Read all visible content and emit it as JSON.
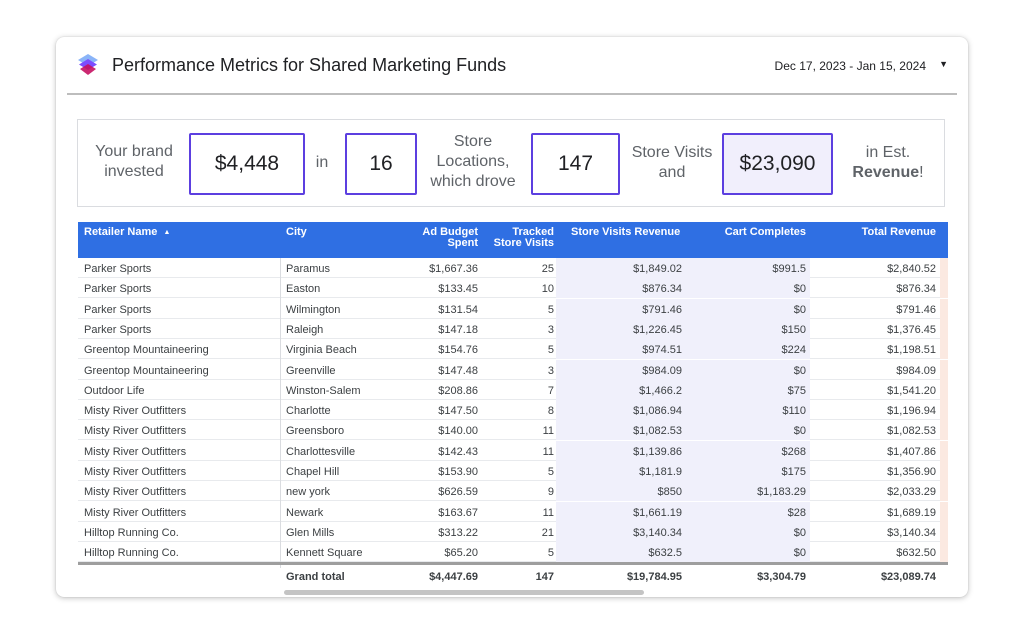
{
  "header": {
    "title": "Performance Metrics for Shared Marketing Funds",
    "date_range": "Dec 17, 2023 - Jan 15, 2024",
    "date_caret": "▼"
  },
  "kpi": {
    "t1": "Your brand invested",
    "v1": "$4,448",
    "t2": "in",
    "v2": "16",
    "t3": "Store Locations, which drove",
    "v3": "147",
    "t4": "Store Visits and",
    "v4": "$23,090",
    "t5a": "in Est.",
    "t5b": "Revenue",
    "t5c": "!"
  },
  "table": {
    "columns": {
      "retailer": "Retailer Name",
      "sort_icon": "▲",
      "city": "City",
      "budget_a": "Ad Budget",
      "budget_b": "Spent",
      "visits_a": "Tracked",
      "visits_b": "Store Visits",
      "svr": "Store Visits Revenue",
      "cart": "Cart Completes",
      "total": "Total Revenue"
    },
    "rows": [
      {
        "retailer": "Parker Sports",
        "city": "Paramus",
        "budget": "$1,667.36",
        "visits": "25",
        "svr": "$1,849.02",
        "cart": "$991.5",
        "total": "$2,840.52"
      },
      {
        "retailer": "Parker Sports",
        "city": "Easton",
        "budget": "$133.45",
        "visits": "10",
        "svr": "$876.34",
        "cart": "$0",
        "total": "$876.34"
      },
      {
        "retailer": "Parker Sports",
        "city": "Wilmington",
        "budget": "$131.54",
        "visits": "5",
        "svr": "$791.46",
        "cart": "$0",
        "total": "$791.46"
      },
      {
        "retailer": "Parker Sports",
        "city": "Raleigh",
        "budget": "$147.18",
        "visits": "3",
        "svr": "$1,226.45",
        "cart": "$150",
        "total": "$1,376.45"
      },
      {
        "retailer": "Greentop Mountaineering",
        "city": "Virginia Beach",
        "budget": "$154.76",
        "visits": "5",
        "svr": "$974.51",
        "cart": "$224",
        "total": "$1,198.51"
      },
      {
        "retailer": "Greentop Mountaineering",
        "city": "Greenville",
        "budget": "$147.48",
        "visits": "3",
        "svr": "$984.09",
        "cart": "$0",
        "total": "$984.09"
      },
      {
        "retailer": "Outdoor Life",
        "city": "Winston-Salem",
        "budget": "$208.86",
        "visits": "7",
        "svr": "$1,466.2",
        "cart": "$75",
        "total": "$1,541.20"
      },
      {
        "retailer": "Misty River Outfitters",
        "city": "Charlotte",
        "budget": "$147.50",
        "visits": "8",
        "svr": "$1,086.94",
        "cart": "$110",
        "total": "$1,196.94"
      },
      {
        "retailer": "Misty River Outfitters",
        "city": "Greensboro",
        "budget": "$140.00",
        "visits": "11",
        "svr": "$1,082.53",
        "cart": "$0",
        "total": "$1,082.53"
      },
      {
        "retailer": "Misty River Outfitters",
        "city": "Charlottesville",
        "budget": "$142.43",
        "visits": "11",
        "svr": "$1,139.86",
        "cart": "$268",
        "total": "$1,407.86"
      },
      {
        "retailer": "Misty River Outfitters",
        "city": "Chapel Hill",
        "budget": "$153.90",
        "visits": "5",
        "svr": "$1,181.9",
        "cart": "$175",
        "total": "$1,356.90"
      },
      {
        "retailer": "Misty River Outfitters",
        "city": "new york",
        "budget": "$626.59",
        "visits": "9",
        "svr": "$850",
        "cart": "$1,183.29",
        "total": "$2,033.29"
      },
      {
        "retailer": "Misty River Outfitters",
        "city": "Newark",
        "budget": "$163.67",
        "visits": "11",
        "svr": "$1,661.19",
        "cart": "$28",
        "total": "$1,689.19"
      },
      {
        "retailer": "Hilltop Running Co.",
        "city": "Glen Mills",
        "budget": "$313.22",
        "visits": "21",
        "svr": "$3,140.34",
        "cart": "$0",
        "total": "$3,140.34"
      },
      {
        "retailer": "Hilltop Running Co.",
        "city": "Kennett Square",
        "budget": "$65.20",
        "visits": "5",
        "svr": "$632.5",
        "cart": "$0",
        "total": "$632.50"
      }
    ],
    "totals": {
      "label": "Grand total",
      "budget": "$4,447.69",
      "visits": "147",
      "svr": "$19,784.95",
      "cart": "$3,304.79",
      "total": "$23,089.74"
    }
  },
  "colors": {
    "header_blue": "#2f6fe3",
    "kpi_border": "#5c3fe0",
    "svr_shade": "#f0f0fb"
  }
}
